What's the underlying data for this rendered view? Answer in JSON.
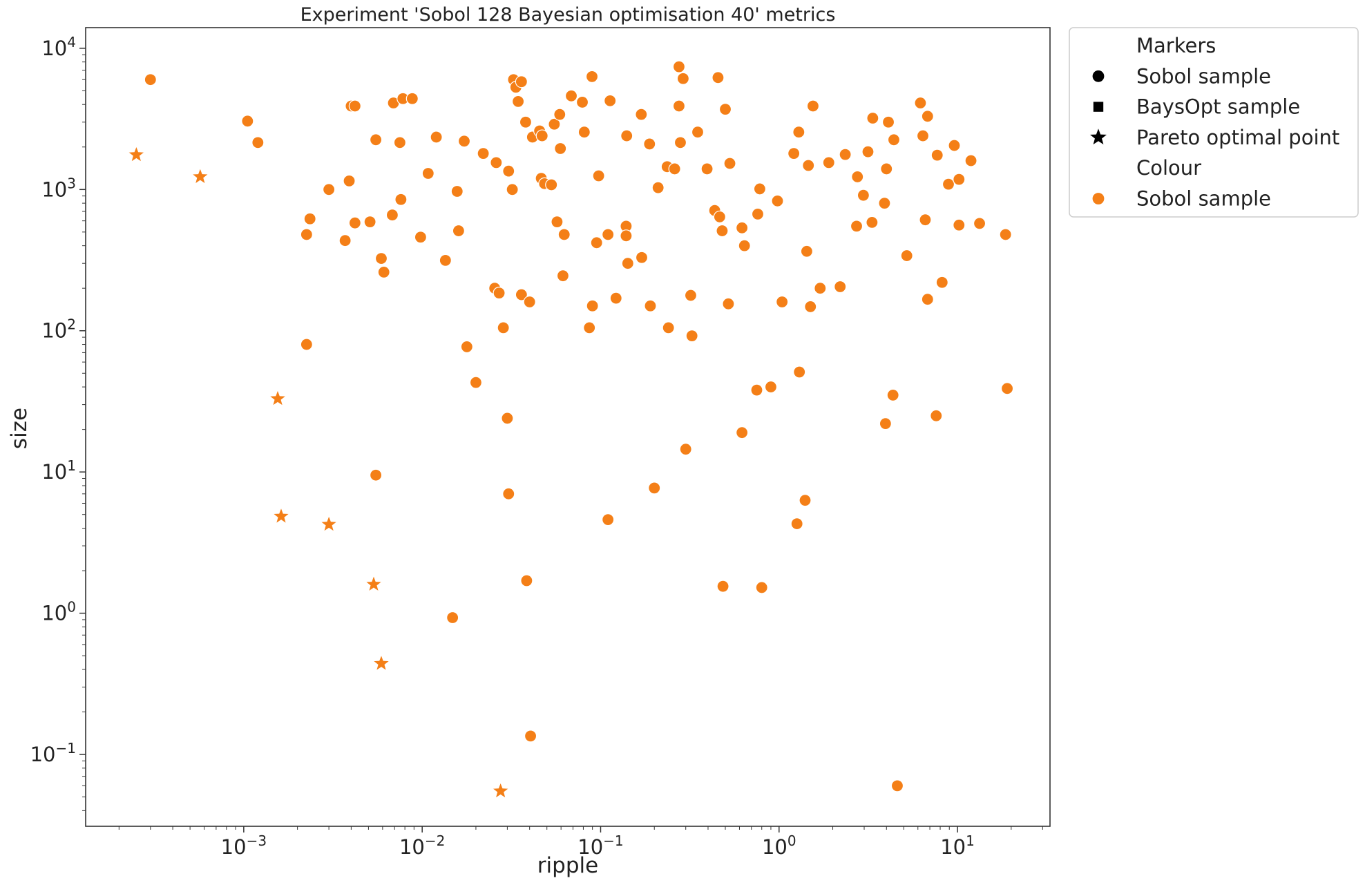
{
  "chart_data": {
    "type": "scatter",
    "title": "Experiment 'Sobol 128 Bayesian optimisation 40' metrics",
    "xlabel": "ripple",
    "ylabel": "size",
    "xscale": "log",
    "yscale": "log",
    "xlim": [
      0.00013,
      33
    ],
    "ylim": [
      0.031,
      14000
    ],
    "grid": false,
    "legend_position": "outside-right-top",
    "colors": {
      "sobol": "#f47f17",
      "marker_key": "#000000"
    },
    "x_ticks": [
      {
        "value": 0.001,
        "base": "10",
        "exp": "−3"
      },
      {
        "value": 0.01,
        "base": "10",
        "exp": "−2"
      },
      {
        "value": 0.1,
        "base": "10",
        "exp": "−1"
      },
      {
        "value": 1,
        "base": "10",
        "exp": "0"
      },
      {
        "value": 10,
        "base": "10",
        "exp": "1"
      }
    ],
    "y_ticks": [
      {
        "value": 0.1,
        "base": "10",
        "exp": "−1"
      },
      {
        "value": 1,
        "base": "10",
        "exp": "0"
      },
      {
        "value": 10,
        "base": "10",
        "exp": "1"
      },
      {
        "value": 100,
        "base": "10",
        "exp": "2"
      },
      {
        "value": 1000,
        "base": "10",
        "exp": "3"
      },
      {
        "value": 10000,
        "base": "10",
        "exp": "4"
      }
    ],
    "legend": [
      {
        "kind": "header",
        "label": "Markers"
      },
      {
        "kind": "entry",
        "marker": "circle",
        "color": "#000000",
        "label": "Sobol sample"
      },
      {
        "kind": "entry",
        "marker": "square",
        "color": "#000000",
        "label": "BaysOpt sample"
      },
      {
        "kind": "entry",
        "marker": "star",
        "color": "#000000",
        "label": "Pareto optimal point"
      },
      {
        "kind": "header",
        "label": "Colour"
      },
      {
        "kind": "entry",
        "marker": "circle",
        "color": "#f47f17",
        "label": "Sobol sample"
      }
    ],
    "series": [
      {
        "name": "Sobol sample",
        "marker": "circle",
        "points": [
          [
            0.0003,
            6000
          ],
          [
            0.00105,
            3050
          ],
          [
            0.0012,
            2150
          ],
          [
            0.00225,
            480
          ],
          [
            0.00235,
            620
          ],
          [
            0.00225,
            80
          ],
          [
            0.003,
            1000
          ],
          [
            0.0037,
            435
          ],
          [
            0.0039,
            1150
          ],
          [
            0.004,
            3900
          ],
          [
            0.0042,
            3900
          ],
          [
            0.0042,
            580
          ],
          [
            0.0051,
            590
          ],
          [
            0.0055,
            2250
          ],
          [
            0.0059,
            325
          ],
          [
            0.0068,
            660
          ],
          [
            0.0069,
            4100
          ],
          [
            0.0075,
            2150
          ],
          [
            0.0076,
            850
          ],
          [
            0.0078,
            4400
          ],
          [
            0.0088,
            4400
          ],
          [
            0.0098,
            460
          ],
          [
            0.0108,
            1300
          ],
          [
            0.012,
            2350
          ],
          [
            0.0135,
            315
          ],
          [
            0.0157,
            970
          ],
          [
            0.016,
            510
          ],
          [
            0.0172,
            2200
          ],
          [
            0.022,
            1800
          ],
          [
            0.026,
            1550
          ],
          [
            0.0305,
            1350
          ],
          [
            0.032,
            1000
          ],
          [
            0.0325,
            6000
          ],
          [
            0.0335,
            5300
          ],
          [
            0.0345,
            4200
          ],
          [
            0.036,
            5800
          ],
          [
            0.038,
            3000
          ],
          [
            0.0415,
            2350
          ],
          [
            0.0455,
            2600
          ],
          [
            0.0465,
            1200
          ],
          [
            0.047,
            2400
          ],
          [
            0.0485,
            1100
          ],
          [
            0.053,
            1080
          ],
          [
            0.055,
            2900
          ],
          [
            0.057,
            590
          ],
          [
            0.059,
            3400
          ],
          [
            0.0595,
            1950
          ],
          [
            0.0625,
            480
          ],
          [
            0.0685,
            4600
          ],
          [
            0.079,
            4150
          ],
          [
            0.081,
            2550
          ],
          [
            0.0895,
            6300
          ],
          [
            0.0975,
            1250
          ],
          [
            0.11,
            480
          ],
          [
            0.113,
            4250
          ],
          [
            0.139,
            550
          ],
          [
            0.139,
            470
          ],
          [
            0.14,
            2400
          ],
          [
            0.169,
            3400
          ],
          [
            0.188,
            2100
          ],
          [
            0.21,
            1030
          ],
          [
            0.236,
            1450
          ],
          [
            0.26,
            1400
          ],
          [
            0.275,
            3900
          ],
          [
            0.275,
            7400
          ],
          [
            0.28,
            2150
          ],
          [
            0.29,
            6100
          ],
          [
            0.35,
            2550
          ],
          [
            0.395,
            1400
          ],
          [
            0.455,
            6200
          ],
          [
            0.5,
            3700
          ],
          [
            0.53,
            1530
          ],
          [
            1.21,
            1800
          ],
          [
            1.29,
            2550
          ],
          [
            1.46,
            1480
          ],
          [
            1.55,
            3900
          ],
          [
            1.9,
            1550
          ],
          [
            2.35,
            1770
          ],
          [
            2.75,
            1230
          ],
          [
            3.15,
            1850
          ],
          [
            3.35,
            3200
          ],
          [
            4.1,
            3000
          ],
          [
            4.4,
            2250
          ],
          [
            6.2,
            4100
          ],
          [
            6.4,
            2400
          ],
          [
            6.8,
            3300
          ],
          [
            7.7,
            1750
          ],
          [
            9.6,
            2050
          ],
          [
            11.9,
            1600
          ],
          [
            0.036,
            180
          ],
          [
            0.2,
            7.7
          ],
          [
            0.09,
            150
          ],
          [
            0.122,
            170
          ],
          [
            0.03,
            24
          ],
          [
            0.04,
            160
          ],
          [
            0.0305,
            7
          ],
          [
            0.0255,
            200
          ],
          [
            0.027,
            185
          ],
          [
            0.0285,
            105
          ],
          [
            0.0385,
            1.7
          ],
          [
            0.0405,
            0.135
          ],
          [
            0.0148,
            0.93
          ],
          [
            0.02,
            43
          ],
          [
            0.0178,
            77
          ],
          [
            0.0061,
            260
          ],
          [
            0.0055,
            9.5
          ],
          [
            0.095,
            420
          ],
          [
            0.11,
            4.6
          ],
          [
            0.0865,
            105
          ],
          [
            0.142,
            300
          ],
          [
            0.17,
            330
          ],
          [
            0.19,
            150
          ],
          [
            0.24,
            105
          ],
          [
            0.3,
            14.5
          ],
          [
            0.32,
            178
          ],
          [
            0.325,
            92
          ],
          [
            0.436,
            710
          ],
          [
            0.465,
            640
          ],
          [
            0.48,
            510
          ],
          [
            0.485,
            1.55
          ],
          [
            0.52,
            155
          ],
          [
            0.62,
            535
          ],
          [
            0.62,
            19
          ],
          [
            0.64,
            400
          ],
          [
            0.75,
            38
          ],
          [
            0.76,
            670
          ],
          [
            0.78,
            1010
          ],
          [
            0.8,
            1.52
          ],
          [
            0.9,
            40
          ],
          [
            0.98,
            830
          ],
          [
            1.04,
            160
          ],
          [
            1.26,
            4.3
          ],
          [
            1.3,
            51
          ],
          [
            1.4,
            6.3
          ],
          [
            1.43,
            365
          ],
          [
            1.5,
            148
          ],
          [
            1.7,
            200
          ],
          [
            2.2,
            205
          ],
          [
            2.72,
            550
          ],
          [
            2.97,
            910
          ],
          [
            3.32,
            585
          ],
          [
            3.9,
            800
          ],
          [
            4.0,
            1400
          ],
          [
            3.95,
            22
          ],
          [
            4.35,
            35
          ],
          [
            4.6,
            0.06
          ],
          [
            5.2,
            340
          ],
          [
            6.6,
            610
          ],
          [
            6.8,
            167
          ],
          [
            7.6,
            25
          ],
          [
            8.2,
            220
          ],
          [
            8.9,
            1090
          ],
          [
            10.2,
            1180
          ],
          [
            10.2,
            560
          ],
          [
            13.3,
            575
          ],
          [
            18.6,
            480
          ],
          [
            19.0,
            39
          ],
          [
            0.0615,
            245
          ]
        ]
      },
      {
        "name": "Pareto optimal point",
        "marker": "star",
        "points": [
          [
            0.00025,
            1760
          ],
          [
            0.00057,
            1230
          ],
          [
            0.00155,
            33
          ],
          [
            0.00162,
            4.85
          ],
          [
            0.003,
            4.25
          ],
          [
            0.00535,
            1.6
          ],
          [
            0.0059,
            0.44
          ],
          [
            0.0275,
            0.055
          ]
        ]
      }
    ]
  }
}
